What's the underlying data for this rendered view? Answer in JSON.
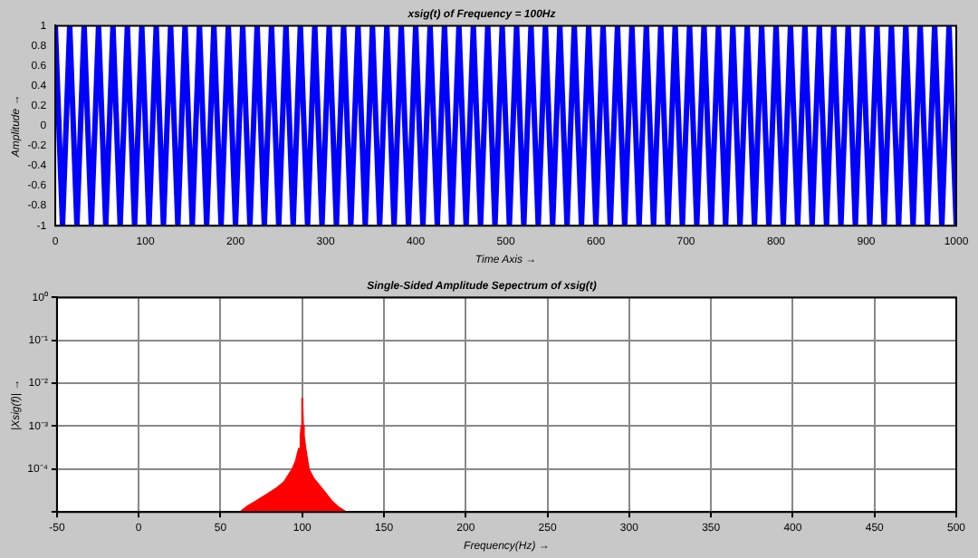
{
  "chart_data": [
    {
      "type": "line",
      "title": "xsig(t) of Frequency = 100Hz",
      "xlabel": "Time Axis →",
      "ylabel": "Amplitude →",
      "xlim": [
        0,
        1000
      ],
      "xticks": [
        0,
        100,
        200,
        300,
        400,
        500,
        600,
        700,
        800,
        900,
        1000
      ],
      "ylim": [
        -1,
        1
      ],
      "yticks": [
        -1,
        -0.8,
        -0.6,
        -0.4,
        -0.2,
        0,
        0.2,
        0.4,
        0.6,
        0.8,
        1
      ],
      "grid": false,
      "legend": false,
      "series": [
        {
          "color": "#0000ff",
          "x": [
            0,
            8,
            16,
            24,
            32,
            40,
            48,
            56,
            64,
            72,
            80,
            88,
            96,
            104,
            112,
            120,
            128,
            136,
            144,
            152,
            160,
            168,
            176,
            184,
            192,
            200,
            208,
            216,
            224,
            232,
            240,
            248,
            256,
            264,
            272,
            280,
            288,
            296,
            304,
            312,
            320,
            328,
            336,
            344,
            352,
            360,
            368,
            376,
            384,
            392,
            400,
            408,
            416,
            424,
            432,
            440,
            448,
            456,
            464,
            472,
            480,
            488,
            496,
            504,
            512,
            520,
            528,
            536,
            544,
            552,
            560,
            568,
            576,
            584,
            592,
            600,
            608,
            616,
            624,
            632,
            640,
            648,
            656,
            664,
            672,
            680,
            688,
            696,
            704,
            712,
            720,
            728,
            736,
            744,
            752,
            760,
            768,
            776,
            784,
            792,
            800,
            808,
            816,
            824,
            832,
            840,
            848,
            856,
            864,
            872,
            880,
            888,
            896,
            904,
            912,
            920,
            928,
            936,
            944,
            952,
            960,
            968,
            976,
            984,
            992,
            1000
          ],
          "values": [
            1,
            -1,
            1,
            -1,
            1,
            -1,
            1,
            -1,
            1,
            -1,
            1,
            -1,
            1,
            -1,
            1,
            -1,
            1,
            -1,
            1,
            -1,
            1,
            -1,
            1,
            -1,
            1,
            -1,
            1,
            -1,
            1,
            -1,
            1,
            -1,
            1,
            -1,
            1,
            -1,
            1,
            -1,
            1,
            -1,
            1,
            -1,
            1,
            -1,
            1,
            -1,
            1,
            -1,
            1,
            -1,
            1,
            -1,
            1,
            -1,
            1,
            -1,
            1,
            -1,
            1,
            -1,
            1,
            -1,
            1,
            -1,
            1,
            -1,
            1,
            -1,
            1,
            -1,
            1,
            -1,
            1,
            -1,
            1,
            -1,
            1,
            -1,
            1,
            -1,
            1,
            -1,
            1,
            -1,
            1,
            -1,
            1,
            -1,
            1,
            -1,
            1,
            -1,
            1,
            -1,
            1,
            -1,
            1,
            -1,
            1,
            -1,
            1,
            -1,
            1,
            -1,
            1,
            -1,
            1,
            -1,
            1,
            -1,
            1,
            -1,
            1,
            -1,
            1,
            -1,
            1,
            -1,
            1,
            -1,
            1,
            -1,
            1,
            -1,
            1,
            -1
          ]
        }
      ]
    },
    {
      "type": "area",
      "title": "Single-Sided Amplitude Sepectrum of xsig(t)",
      "xlabel": "Frequency(Hz) →",
      "ylabel": "|Xsig(f)| →",
      "xlim": [
        -50,
        500
      ],
      "xticks": [
        -50,
        0,
        50,
        100,
        150,
        200,
        250,
        300,
        350,
        400,
        450,
        500
      ],
      "ylim": [
        1e-05,
        1
      ],
      "yticks": [
        {
          "value": 1e-05,
          "label": null
        },
        {
          "value": 0.0001,
          "label": "10⁻⁴"
        },
        {
          "value": 0.001,
          "label": "10⁻³"
        },
        {
          "value": 0.01,
          "label": "10⁻²"
        },
        {
          "value": 0.1,
          "label": "10⁻¹"
        },
        {
          "value": 1,
          "label": "10⁰"
        }
      ],
      "log": "y",
      "grid": true,
      "legend": false,
      "series": [
        {
          "color": "#ff0000",
          "x": [
            62,
            67,
            72,
            78,
            84,
            89,
            94,
            96,
            98,
            99,
            99.5,
            100,
            100.5,
            101,
            102,
            104,
            107,
            112,
            118,
            122,
            126.6
          ],
          "values": [
            1e-05,
            1.4e-05,
            1.8e-05,
            2.5e-05,
            3.5e-05,
            5e-05,
            0.0001,
            0.00015,
            0.0003,
            0.0006,
            0.001,
            0.0044,
            0.001,
            0.0006,
            0.0003,
            0.0001,
            6e-05,
            3.5e-05,
            1.8e-05,
            1.3e-05,
            1e-05
          ]
        }
      ]
    }
  ]
}
